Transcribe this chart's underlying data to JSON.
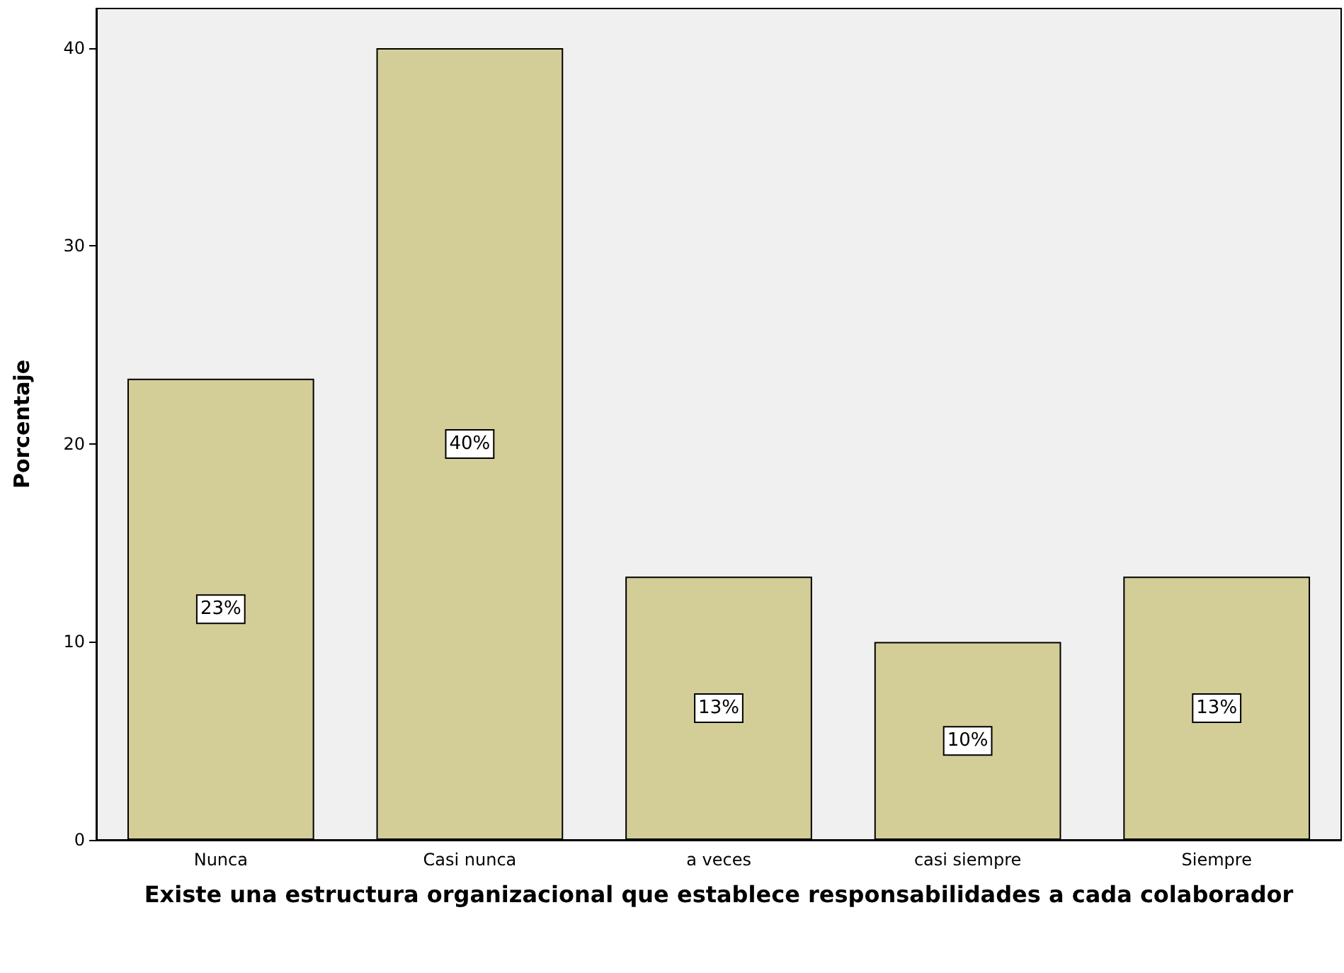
{
  "chart_data": {
    "type": "bar",
    "xlabel": "Existe una estructura organizacional que establece responsabilidades a cada colaborador",
    "ylabel": "Porcentaje",
    "categories": [
      "Nunca",
      "Casi nunca",
      "a veces",
      "casi siempre",
      "Siempre"
    ],
    "values": [
      23.3,
      40,
      13.3,
      10,
      13.3
    ],
    "value_labels": [
      "23%",
      "40%",
      "13%",
      "10%",
      "13%"
    ],
    "color": "#d3ce97",
    "ylim": [
      0,
      42
    ],
    "yticks": [
      0,
      10,
      20,
      30,
      40
    ]
  }
}
